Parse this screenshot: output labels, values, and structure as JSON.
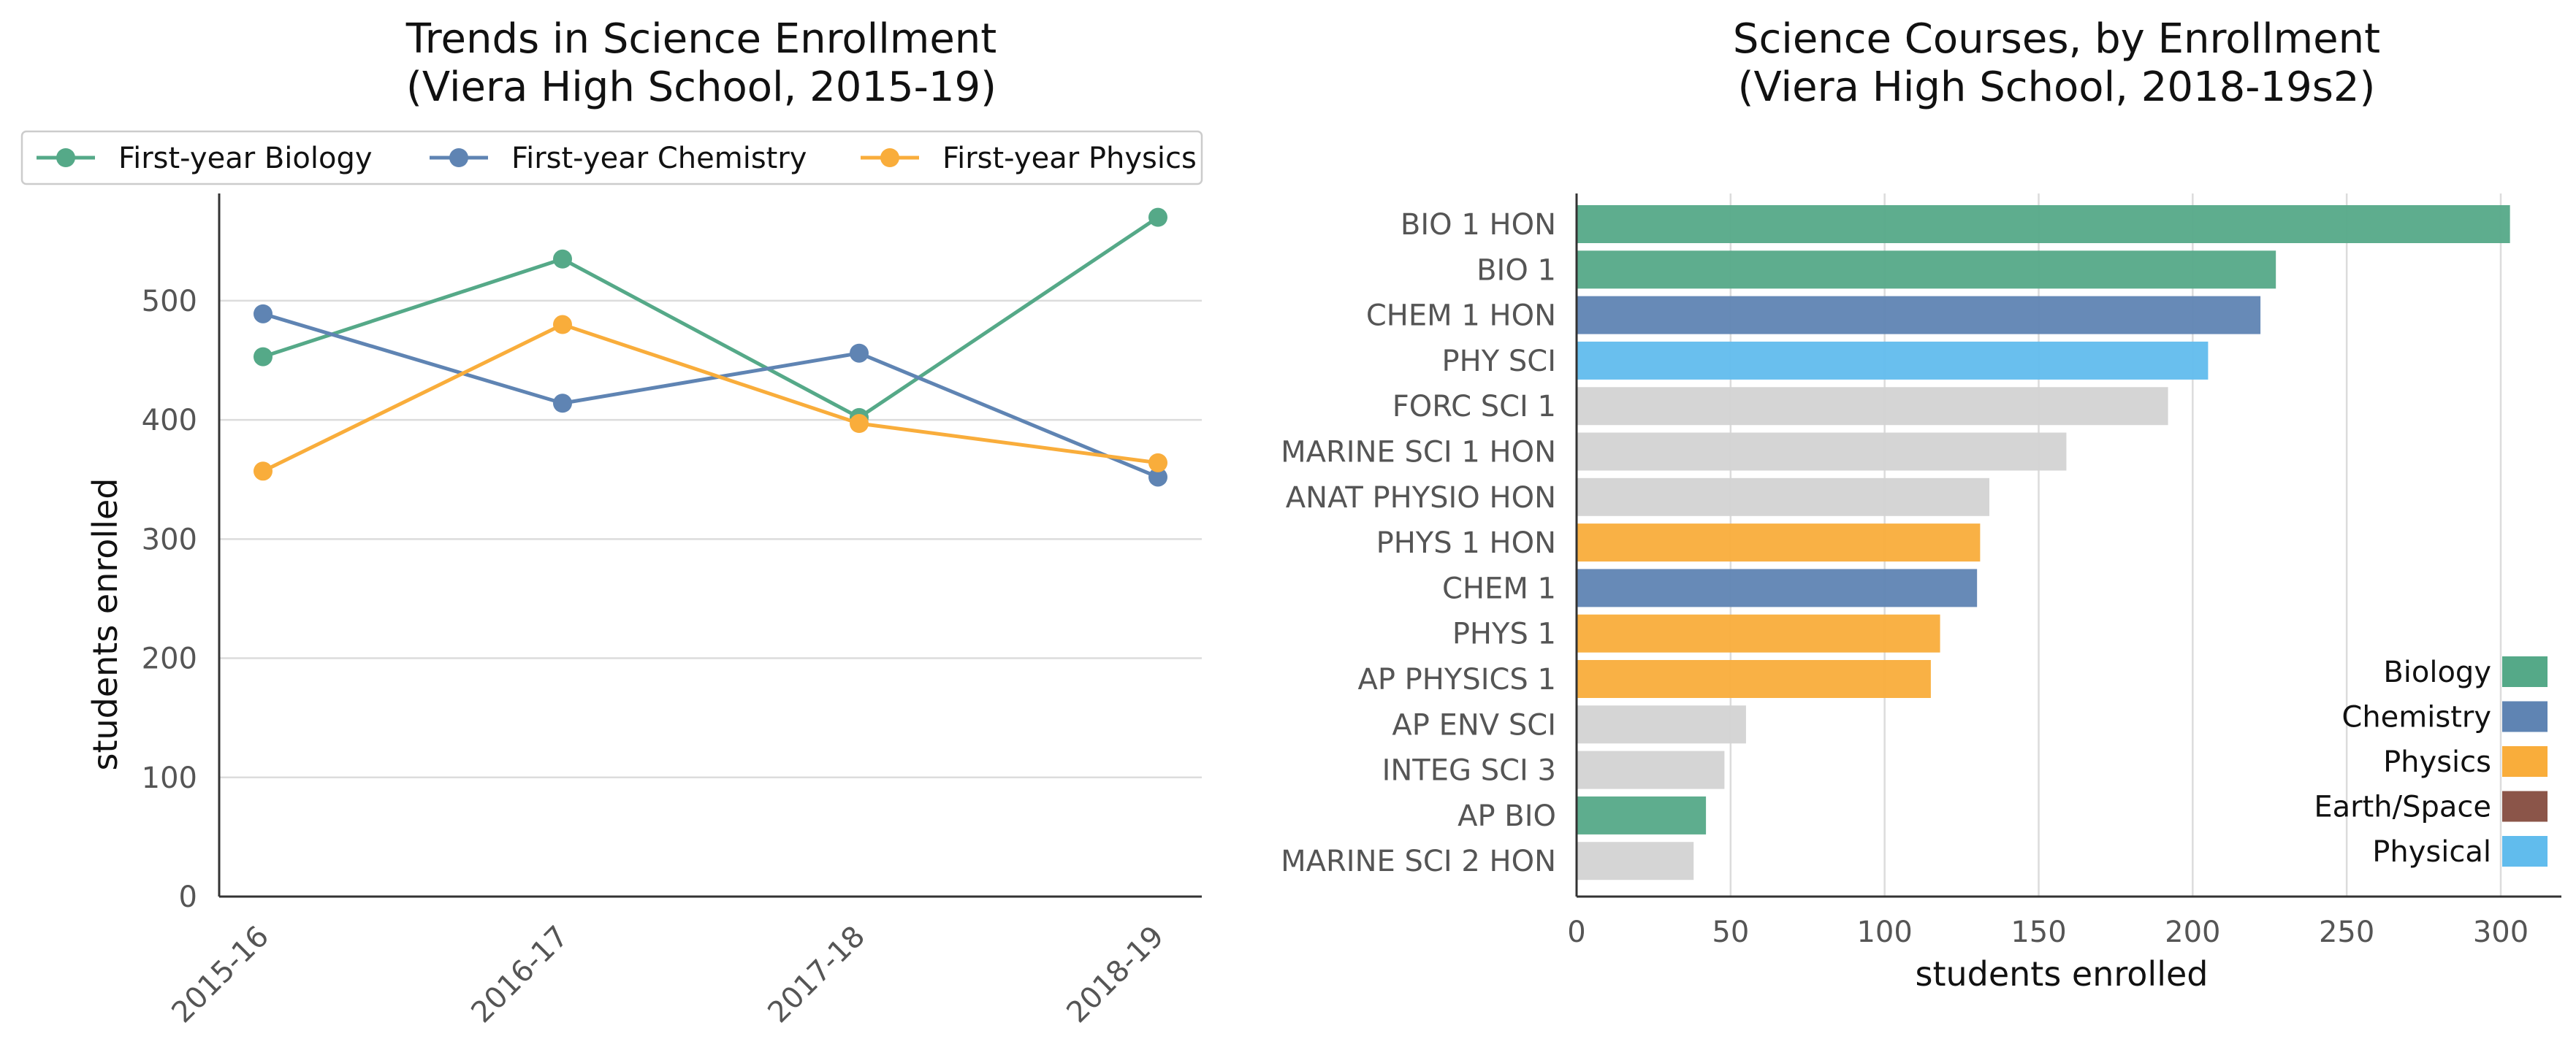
{
  "chart_data": [
    {
      "type": "line",
      "title": "Trends in Science Enrollment\n(Viera High School, 2015-19)",
      "ylabel": "students enrolled",
      "xlabel": "",
      "x": [
        "2015-16",
        "2016-17",
        "2017-18",
        "2018-19"
      ],
      "ylim": [
        0,
        590
      ],
      "yticks": [
        0,
        100,
        200,
        300,
        400,
        500
      ],
      "grid": "horizontal",
      "legend_position": "top",
      "series": [
        {
          "name": "First-year Biology",
          "color": "#55a988",
          "values": [
            453,
            535,
            402,
            570
          ]
        },
        {
          "name": "First-year Chemistry",
          "color": "#5f84b3",
          "values": [
            489,
            414,
            456,
            352
          ]
        },
        {
          "name": "First-year Physics",
          "color": "#f9ad3b",
          "values": [
            357,
            480,
            397,
            364
          ]
        }
      ]
    },
    {
      "type": "bar",
      "orientation": "horizontal",
      "title": "Science Courses, by Enrollment\n(Viera High School, 2018-19s2)",
      "xlabel": "students enrolled",
      "ylabel": "",
      "xlim": [
        0,
        320
      ],
      "xticks": [
        0,
        50,
        100,
        150,
        200,
        250,
        300
      ],
      "grid": "vertical",
      "legend_position": "lower-right",
      "categories": [
        "BIO 1 HON",
        "BIO 1",
        "CHEM 1 HON",
        "PHY SCI",
        "FORC SCI 1",
        "MARINE SCI 1 HON",
        "ANAT PHYSIO HON",
        "PHYS 1 HON",
        "CHEM 1",
        "PHYS 1",
        "AP PHYSICS 1",
        "AP ENV SCI",
        "INTEG SCI 3",
        "AP BIO",
        "MARINE SCI 2 HON"
      ],
      "values": [
        303,
        227,
        222,
        205,
        192,
        159,
        134,
        131,
        130,
        118,
        115,
        55,
        48,
        42,
        38
      ],
      "subjects": [
        "Biology",
        "Biology",
        "Chemistry",
        "Physical",
        "Other",
        "Other",
        "Other",
        "Physics",
        "Chemistry",
        "Physics",
        "Physics",
        "Other",
        "Other",
        "Biology",
        "Other"
      ],
      "subject_colors": {
        "Biology": "#55a988",
        "Chemistry": "#5f84b3",
        "Physics": "#f9ad3b",
        "Earth/Space": "#8b5549",
        "Physical": "#61bced",
        "Other": "#d3d3d3"
      },
      "legend": [
        "Biology",
        "Chemistry",
        "Physics",
        "Earth/Space",
        "Physical"
      ]
    }
  ]
}
